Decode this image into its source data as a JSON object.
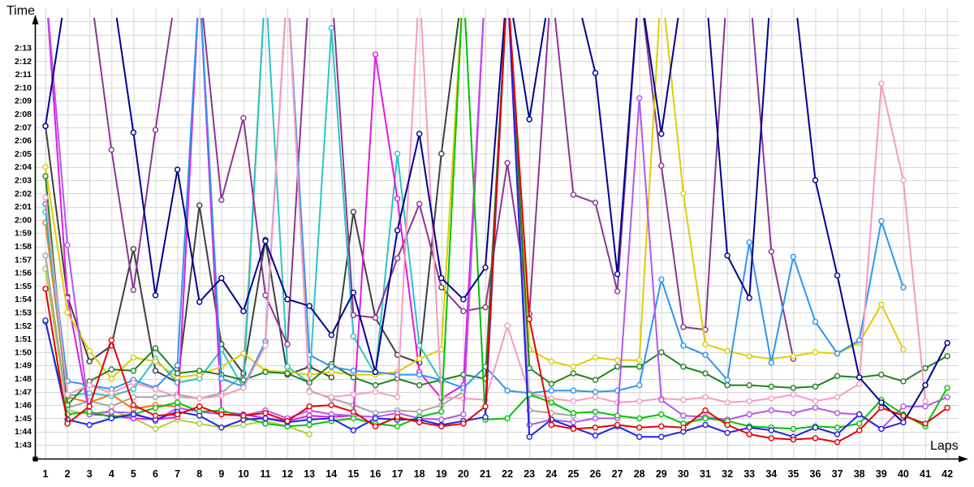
{
  "chart_data": {
    "type": "line",
    "title": "",
    "ylabel": "Time",
    "xlabel": "Laps",
    "grid": true,
    "legend": "none",
    "y_axis": {
      "unit": "lap time m:ss",
      "min_label": "1:43",
      "max_label": "2:13",
      "ticks": [
        "1:43",
        "1:44",
        "1:45",
        "1:46",
        "1:47",
        "1:48",
        "1:49",
        "1:50",
        "1:51",
        "1:52",
        "1:53",
        "1:54",
        "1:55",
        "1:56",
        "1:57",
        "1:58",
        "1:59",
        "2:00",
        "2:01",
        "2:02",
        "2:03",
        "2:04",
        "2:05",
        "2:06",
        "2:07",
        "2:08",
        "2:09",
        "2:10",
        "2:11",
        "2:12",
        "2:13"
      ]
    },
    "x_axis": {
      "ticks": [
        1,
        2,
        3,
        4,
        5,
        6,
        7,
        8,
        9,
        10,
        11,
        12,
        13,
        14,
        15,
        16,
        17,
        18,
        19,
        20,
        21,
        22,
        23,
        24,
        25,
        26,
        27,
        28,
        29,
        30,
        31,
        32,
        33,
        34,
        35,
        36,
        37,
        38,
        39,
        40,
        41,
        42
      ]
    },
    "value_encoding": "seconds after 1:00; 138 = lap slower than visible scale (line runs off top of chart); null = driver not running",
    "series": [
      {
        "name": "orange",
        "color": "#f07800",
        "values": [
          119.8,
          106.6,
          106.2,
          106.8,
          105.7,
          106.0,
          105.9,
          null,
          null,
          null,
          null,
          null,
          null,
          null,
          null,
          null,
          null,
          null,
          null,
          null,
          null,
          null,
          null,
          null,
          null,
          null,
          null,
          null,
          null,
          null,
          null,
          null,
          null,
          null,
          null,
          null,
          null,
          null,
          null,
          null,
          null,
          null
        ]
      },
      {
        "name": "palegreen",
        "color": "#b4cd3c",
        "values": [
          116.3,
          105.6,
          105.3,
          105.6,
          105.0,
          104.2,
          104.9,
          104.6,
          104.3,
          104.5,
          104.8,
          104.4,
          103.8,
          null,
          null,
          null,
          null,
          null,
          null,
          null,
          null,
          null,
          null,
          null,
          null,
          null,
          null,
          null,
          null,
          null,
          null,
          null,
          null,
          null,
          null,
          null,
          null,
          null,
          null,
          null,
          null,
          null
        ]
      },
      {
        "name": "gray",
        "color": "#a3a3a3",
        "values": [
          117.3,
          105.8,
          106.3,
          105.9,
          106.6,
          106.6,
          106.8,
          106.5,
          106.9,
          108.3,
          138,
          138,
          107.1,
          106.5,
          106.0,
          105.4,
          105.6,
          105.5,
          106.0,
          107.0,
          138,
          138,
          105.6,
          105.4,
          105.2,
          null,
          null,
          null,
          null,
          null,
          null,
          null,
          null,
          null,
          null,
          null,
          null,
          null,
          null,
          null,
          null,
          null
        ]
      },
      {
        "name": "darkgray",
        "color": "#3f3f3f",
        "values": [
          127.1,
          114.2,
          109.3,
          110.5,
          117.8,
          108.6,
          107.7,
          121.1,
          110.6,
          108.4,
          118.5,
          108.3,
          108.9,
          108.1,
          120.6,
          112.6,
          109.8,
          109.2,
          125.0,
          138,
          null,
          null,
          null,
          null,
          null,
          null,
          null,
          null,
          null,
          null,
          null,
          null,
          null,
          null,
          null,
          null,
          null,
          null,
          null,
          null,
          null,
          null
        ]
      },
      {
        "name": "cyan",
        "color": "#2cc4c4",
        "values": [
          120.6,
          106.7,
          106.9,
          106.7,
          107.2,
          109.5,
          107.7,
          108.0,
          110.2,
          107.3,
          138,
          108.9,
          107.7,
          134.5,
          111.2,
          108.3,
          125.0,
          110.5,
          107.8,
          null,
          null,
          null,
          null,
          null,
          null,
          null,
          null,
          null,
          null,
          null,
          null,
          null,
          null,
          null,
          null,
          null,
          null,
          null,
          null,
          null,
          null,
          null
        ]
      },
      {
        "name": "purple",
        "color": "#8c3596",
        "values": [
          138,
          138,
          138,
          125.3,
          114.7,
          126.8,
          138,
          138,
          121.5,
          127.7,
          114.3,
          110.6,
          138,
          138,
          112.8,
          112.6,
          117.1,
          121.2,
          114.9,
          113.1,
          113.4,
          124.3,
          112.9,
          138,
          121.9,
          121.3,
          114.6,
          138,
          124.1,
          111.9,
          111.7,
          138,
          138,
          117.6,
          109.5,
          null,
          null,
          null,
          null,
          null,
          null,
          null
        ]
      },
      {
        "name": "magenta",
        "color": "#e319e3",
        "values": [
          138,
          114.1,
          105.3,
          105.2,
          105.0,
          104.9,
          105.1,
          138,
          105.5,
          105.3,
          105.0,
          104.8,
          105.2,
          105.1,
          105.2,
          132.5,
          121.6,
          108.5,
          106.5,
          107.5,
          138,
          null,
          null,
          null,
          null,
          null,
          null,
          null,
          null,
          null,
          null,
          null,
          null,
          null,
          null,
          null,
          null,
          null,
          null,
          null,
          null,
          null
        ]
      },
      {
        "name": "yellow",
        "color": "#e0cc00",
        "values": [
          124.0,
          113.0,
          110.1,
          108.0,
          109.6,
          109.3,
          108.1,
          108.3,
          108.9,
          109.9,
          108.6,
          108.5,
          108.3,
          108.5,
          108.3,
          108.3,
          108.5,
          109.5,
          110.2,
          138,
          138,
          138,
          110.2,
          109.3,
          108.9,
          109.6,
          109.4,
          109.4,
          138,
          122.0,
          110.6,
          110.1,
          109.7,
          109.5,
          109.7,
          110.0,
          109.9,
          110.7,
          113.6,
          110.2,
          null,
          null
        ]
      },
      {
        "name": "darkgreen",
        "color": "#1e821e",
        "values": [
          123.3,
          106.0,
          107.8,
          108.7,
          108.6,
          110.3,
          108.4,
          108.6,
          108.3,
          107.9,
          108.5,
          108.4,
          107.7,
          109.1,
          108.1,
          107.5,
          108.0,
          107.5,
          107.9,
          108.3,
          108.0,
          138,
          108.8,
          107.6,
          108.4,
          107.9,
          108.9,
          108.9,
          110.0,
          108.9,
          108.4,
          107.5,
          107.5,
          107.4,
          107.3,
          107.4,
          108.2,
          108.1,
          108.3,
          107.8,
          108.8,
          109.7
        ]
      },
      {
        "name": "skyblue",
        "color": "#2e95f0",
        "values": [
          121.2,
          107.8,
          107.5,
          107.2,
          107.9,
          107.3,
          109.0,
          138,
          108.0,
          107.4,
          110.8,
          138,
          109.8,
          108.9,
          108.6,
          108.5,
          108.3,
          108.3,
          107.9,
          107.3,
          108.9,
          107.1,
          106.9,
          107.1,
          107.1,
          107.0,
          107.1,
          107.5,
          115.5,
          110.5,
          109.8,
          107.9,
          118.3,
          109.2,
          117.2,
          112.3,
          109.9,
          110.9,
          119.9,
          114.9,
          null,
          null
        ]
      },
      {
        "name": "pink",
        "color": "#f79ac0",
        "values": [
          121.7,
          106.8,
          107.5,
          106.9,
          107.7,
          107.2,
          106.6,
          106.5,
          106.7,
          107.3,
          110.5,
          138,
          107.0,
          106.6,
          106.8,
          107.0,
          106.6,
          138,
          106.6,
          106.5,
          106.4,
          112.0,
          106.9,
          106.5,
          106.3,
          106.6,
          106.2,
          106.3,
          106.5,
          106.4,
          106.6,
          106.2,
          106.3,
          106.5,
          106.8,
          106.3,
          106.6,
          107.6,
          130.3,
          123.0,
          106.3,
          null
        ]
      },
      {
        "name": "violet",
        "color": "#b455f0",
        "values": [
          138,
          118.1,
          105.3,
          105.5,
          105.4,
          104.8,
          105.8,
          105.5,
          105.3,
          105.2,
          105.6,
          105.0,
          105.6,
          105.3,
          105.2,
          105.1,
          105.4,
          105.0,
          104.9,
          105.3,
          138,
          138,
          104.5,
          104.9,
          104.7,
          105.0,
          105.0,
          129.2,
          106.4,
          105.2,
          105.1,
          104.9,
          105.3,
          105.6,
          105.4,
          105.8,
          105.4,
          105.3,
          104.2,
          105.9,
          105.9,
          106.6
        ]
      },
      {
        "name": "green",
        "color": "#00c300",
        "values": [
          112.3,
          105.3,
          105.5,
          105.1,
          105.3,
          105.8,
          106.2,
          105.5,
          105.6,
          105.1,
          104.6,
          104.4,
          104.5,
          104.8,
          105.0,
          104.6,
          104.4,
          105.1,
          105.5,
          138,
          104.9,
          105.0,
          106.8,
          106.2,
          105.4,
          105.5,
          105.2,
          105.0,
          105.3,
          104.6,
          105.0,
          104.8,
          104.4,
          104.3,
          104.2,
          104.4,
          104.3,
          104.6,
          106.4,
          105.3,
          104.4,
          107.3
        ]
      },
      {
        "name": "navy",
        "color": "#000091",
        "values": [
          127.1,
          138,
          138,
          138,
          126.6,
          114.3,
          123.8,
          113.8,
          115.6,
          113.1,
          118.4,
          114.0,
          113.5,
          111.3,
          114.5,
          108.5,
          119.2,
          126.5,
          115.6,
          114.0,
          116.4,
          138,
          127.6,
          138,
          138,
          131.1,
          115.9,
          138,
          126.5,
          138,
          138,
          117.3,
          114.1,
          138,
          138,
          123.0,
          115.8,
          108.1,
          106.2,
          104.7,
          107.5,
          110.7
        ]
      },
      {
        "name": "blue",
        "color": "#2222e6",
        "values": [
          112.4,
          104.9,
          104.5,
          105.0,
          105.3,
          104.9,
          105.5,
          105.2,
          104.3,
          104.9,
          105.0,
          104.7,
          104.9,
          105.0,
          104.1,
          105.0,
          104.9,
          104.9,
          104.5,
          104.8,
          105.1,
          138,
          103.6,
          104.9,
          104.3,
          103.7,
          104.4,
          103.6,
          103.6,
          104.0,
          104.5,
          103.9,
          104.3,
          104.1,
          103.6,
          104.3,
          103.8,
          105.3,
          104.2,
          104.7,
          null,
          null
        ]
      },
      {
        "name": "red",
        "color": "#e60000",
        "values": [
          114.8,
          104.6,
          105.9,
          110.9,
          106.0,
          105.2,
          105.3,
          105.9,
          105.3,
          105.2,
          105.4,
          104.8,
          105.9,
          106.0,
          105.5,
          104.4,
          105.1,
          104.7,
          104.4,
          104.6,
          105.9,
          138,
          112.5,
          104.5,
          104.2,
          104.3,
          104.5,
          104.3,
          104.4,
          104.3,
          105.6,
          104.5,
          103.8,
          103.5,
          103.4,
          103.5,
          103.2,
          104.1,
          105.8,
          105.2,
          104.6,
          105.8
        ]
      }
    ]
  }
}
